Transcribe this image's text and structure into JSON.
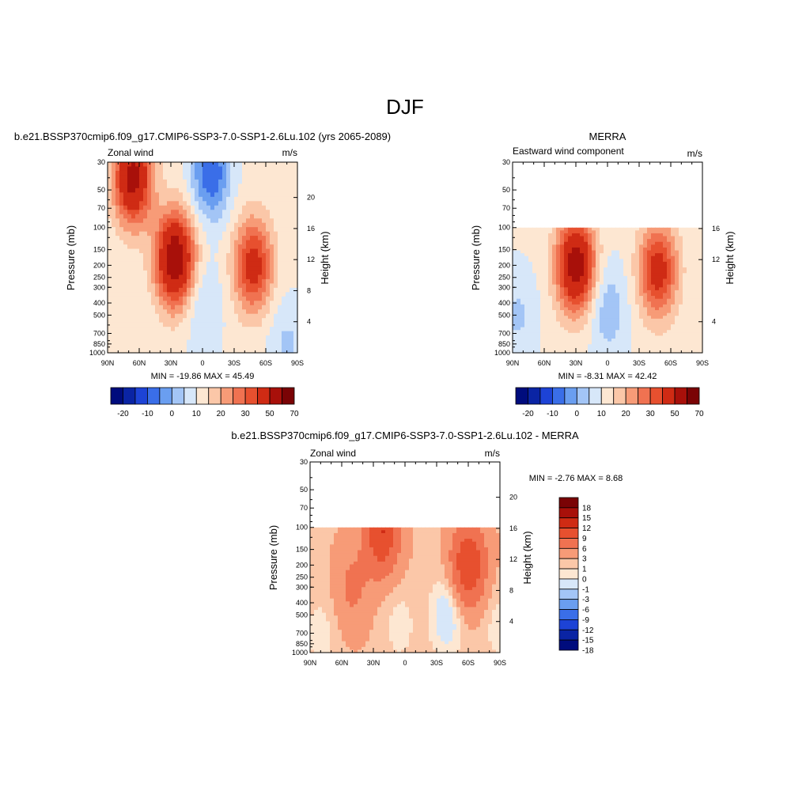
{
  "page_title": "DJF",
  "chart_data": [
    {
      "type": "heatmap",
      "title": "b.e21.BSSP370cmip6.f09_g17.CMIP6-SSP3-7.0-SSP1-2.6Lu.102 (yrs 2065-2089)",
      "left_label": "Zonal wind",
      "right_label": "m/s",
      "ylabel": "Pressure (mb)",
      "y2label": "Height (km)",
      "x_ticks": [
        "90N",
        "60N",
        "30N",
        "0",
        "30S",
        "60S",
        "90S"
      ],
      "y_ticks": [
        "30",
        "50",
        "70",
        "100",
        "150",
        "200",
        "250",
        "300",
        "400",
        "500",
        "700",
        "850",
        "1000"
      ],
      "y2_ticks": [
        "4",
        "8",
        "12",
        "16",
        "20"
      ],
      "data_top_mb": 30,
      "stats": "MIN = -19.86  MAX =  45.49",
      "min": -19.86,
      "max": 45.49,
      "colorbar_labels": [
        "-20",
        "-10",
        "0",
        "10",
        "20",
        "30",
        "50",
        "70"
      ],
      "features": [
        {
          "lat": 66,
          "p": 40,
          "value": 40
        },
        {
          "lat": 26,
          "p": 180,
          "value": 45
        },
        {
          "lat": -48,
          "p": 200,
          "value": 30
        },
        {
          "lat": -8,
          "p": 36,
          "value": -19
        },
        {
          "lat": 0,
          "p": 420,
          "value": -5
        },
        {
          "lat": -80,
          "p": 850,
          "value": -5
        }
      ]
    },
    {
      "type": "heatmap",
      "title": "MERRA",
      "left_label": "Eastward wind component",
      "right_label": "m/s",
      "ylabel": "Pressure (mb)",
      "y2label": "Height (km)",
      "x_ticks": [
        "90N",
        "60N",
        "30N",
        "0",
        "30S",
        "60S",
        "90S"
      ],
      "y_ticks": [
        "30",
        "50",
        "70",
        "100",
        "150",
        "200",
        "250",
        "300",
        "400",
        "500",
        "700",
        "850",
        "1000"
      ],
      "y2_ticks": [
        "4",
        "12",
        "16"
      ],
      "data_top_mb": 100,
      "stats": "MIN =  -8.31  MAX =  42.42",
      "min": -8.31,
      "max": 42.42,
      "colorbar_labels": [
        "-20",
        "-10",
        "0",
        "10",
        "20",
        "30",
        "50",
        "70"
      ],
      "features": [
        {
          "lat": 30,
          "p": 200,
          "value": 42
        },
        {
          "lat": -48,
          "p": 220,
          "value": 30
        },
        {
          "lat": 0,
          "p": 450,
          "value": -8
        },
        {
          "lat": 85,
          "p": 500,
          "value": -5
        }
      ]
    },
    {
      "type": "heatmap",
      "title": "b.e21.BSSP370cmip6.f09_g17.CMIP6-SSP3-7.0-SSP1-2.6Lu.102 - MERRA",
      "left_label": "Zonal wind",
      "right_label": "m/s",
      "ylabel": "Pressure (mb)",
      "y2label": "Height (km)",
      "x_ticks": [
        "90N",
        "60N",
        "30N",
        "0",
        "30S",
        "60S",
        "90S"
      ],
      "y_ticks": [
        "30",
        "50",
        "70",
        "100",
        "150",
        "200",
        "250",
        "300",
        "400",
        "500",
        "700",
        "850",
        "1000"
      ],
      "y2_ticks": [
        "4",
        "8",
        "12",
        "16",
        "20"
      ],
      "data_top_mb": 100,
      "stats": "MIN =  -2.76  MAX =   8.68",
      "min": -2.76,
      "max": 8.68,
      "colorbar_labels": [
        "18",
        "15",
        "12",
        "9",
        "6",
        "3",
        "1",
        "0",
        "-1",
        "-3",
        "-6",
        "-9",
        "-12",
        "-15",
        "-18"
      ],
      "features": [
        {
          "lat": 22,
          "p": 110,
          "value": 8.5
        },
        {
          "lat": -60,
          "p": 200,
          "value": 8.6
        },
        {
          "lat": 50,
          "p": 300,
          "value": 3
        },
        {
          "lat": -40,
          "p": 500,
          "value": -2.7
        },
        {
          "lat": 80,
          "p": 700,
          "value": -1
        },
        {
          "lat": 5,
          "p": 600,
          "value": -1
        },
        {
          "lat": -88,
          "p": 600,
          "value": -1
        }
      ]
    }
  ],
  "colors": {
    "main_levels": [
      "#000c7d",
      "#0a24a4",
      "#1d43d6",
      "#3a6ee8",
      "#6a9ef0",
      "#a3c5f6",
      "#d7e7f9",
      "#fde7d2",
      "#fbc7a8",
      "#f79b77",
      "#f07251",
      "#e7502f",
      "#cf2b14",
      "#a8100a",
      "#7a0305"
    ],
    "diff_levels": [
      "#7a0305",
      "#a8100a",
      "#cf2b14",
      "#e7502f",
      "#f07251",
      "#f79b77",
      "#fbc7a8",
      "#fde7d2",
      "#d7e7f9",
      "#a3c5f6",
      "#6a9ef0",
      "#3a6ee8",
      "#1d43d6",
      "#0a24a4",
      "#000c7d"
    ],
    "diff_fill": [
      "#000c7d",
      "#0a24a4",
      "#1d43d6",
      "#3a6ee8",
      "#6a9ef0",
      "#a3c5f6",
      "#d7e7f9",
      "#fde7d2",
      "#fbc7a8",
      "#f79b77",
      "#f07251",
      "#e7502f",
      "#cf2b14",
      "#a8100a",
      "#7a0305"
    ]
  }
}
